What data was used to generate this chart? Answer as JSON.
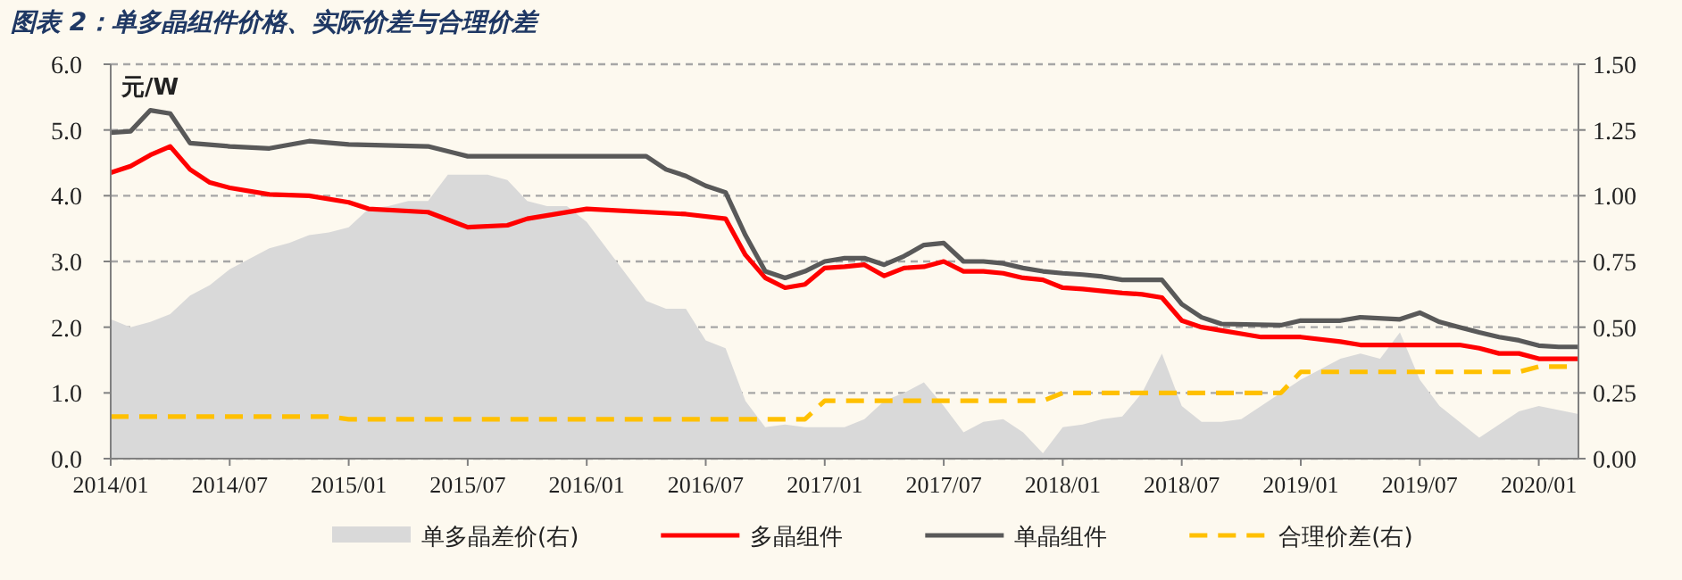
{
  "chart_data": {
    "type": "line",
    "title": "图表 2：单多晶组件价格、实际价差与合理价差",
    "ylabel": "元/W",
    "xlim": [
      "2014-01",
      "2020-03"
    ],
    "xticks": [
      {
        "value": "2014-01",
        "label": "2014/01"
      },
      {
        "value": "2014-07",
        "label": "2014/07"
      },
      {
        "value": "2015-01",
        "label": "2015/01"
      },
      {
        "value": "2015-07",
        "label": "2015/07"
      },
      {
        "value": "2016-01",
        "label": "2016/01"
      },
      {
        "value": "2016-07",
        "label": "2016/07"
      },
      {
        "value": "2017-01",
        "label": "2017/01"
      },
      {
        "value": "2017-07",
        "label": "2017/07"
      },
      {
        "value": "2018-01",
        "label": "2018/01"
      },
      {
        "value": "2018-07",
        "label": "2018/07"
      },
      {
        "value": "2019-01",
        "label": "2019/01"
      },
      {
        "value": "2019-07",
        "label": "2019/07"
      },
      {
        "value": "2020-01",
        "label": "2020/01"
      }
    ],
    "ylim": [
      0,
      6
    ],
    "yticks": [
      {
        "value": 0,
        "label": "0.0"
      },
      {
        "value": 1,
        "label": "1.0"
      },
      {
        "value": 2,
        "label": "2.0"
      },
      {
        "value": 3,
        "label": "3.0"
      },
      {
        "value": 4,
        "label": "4.0"
      },
      {
        "value": 5,
        "label": "5.0"
      },
      {
        "value": 6,
        "label": "6.0"
      }
    ],
    "y2lim": [
      0,
      1.5
    ],
    "y2ticks": [
      {
        "value": 0,
        "label": "0.00"
      },
      {
        "value": 0.25,
        "label": "0.25"
      },
      {
        "value": 0.5,
        "label": "0.50"
      },
      {
        "value": 0.75,
        "label": "0.75"
      },
      {
        "value": 1,
        "label": "1.00"
      },
      {
        "value": 1.25,
        "label": "1.25"
      },
      {
        "value": 1.5,
        "label": "1.50"
      }
    ],
    "grid": "y",
    "legend": "bottom",
    "series": [
      {
        "name": "单多晶差价(右)",
        "type": "area",
        "axis": "y2",
        "color": "#d9d9d9",
        "x": [
          "2014-01",
          "2014-02",
          "2014-03",
          "2014-04",
          "2014-05",
          "2014-06",
          "2014-07",
          "2014-08",
          "2014-09",
          "2014-10",
          "2014-11",
          "2014-12",
          "2015-01",
          "2015-02",
          "2015-03",
          "2015-04",
          "2015-05",
          "2015-06",
          "2015-07",
          "2015-08",
          "2015-09",
          "2015-10",
          "2015-11",
          "2015-12",
          "2016-01",
          "2016-02",
          "2016-03",
          "2016-04",
          "2016-05",
          "2016-06",
          "2016-07",
          "2016-08",
          "2016-09",
          "2016-10",
          "2016-11",
          "2016-12",
          "2017-01",
          "2017-02",
          "2017-03",
          "2017-04",
          "2017-05",
          "2017-06",
          "2017-07",
          "2017-08",
          "2017-09",
          "2017-10",
          "2017-11",
          "2017-12",
          "2018-01",
          "2018-02",
          "2018-03",
          "2018-04",
          "2018-05",
          "2018-06",
          "2018-07",
          "2018-08",
          "2018-09",
          "2018-10",
          "2018-12",
          "2019-01",
          "2019-02",
          "2019-03",
          "2019-04",
          "2019-05",
          "2019-06",
          "2019-07",
          "2019-08",
          "2019-10",
          "2019-12",
          "2020-01",
          "2020-03"
        ],
        "values": [
          0.53,
          0.5,
          0.52,
          0.55,
          0.62,
          0.66,
          0.72,
          0.76,
          0.8,
          0.82,
          0.85,
          0.86,
          0.88,
          0.95,
          0.96,
          0.98,
          0.98,
          1.08,
          1.08,
          1.08,
          1.06,
          0.98,
          0.96,
          0.96,
          0.9,
          0.8,
          0.7,
          0.6,
          0.57,
          0.57,
          0.45,
          0.42,
          0.22,
          0.12,
          0.13,
          0.12,
          0.12,
          0.12,
          0.15,
          0.22,
          0.25,
          0.29,
          0.2,
          0.1,
          0.14,
          0.15,
          0.1,
          0.02,
          0.12,
          0.13,
          0.15,
          0.16,
          0.25,
          0.4,
          0.2,
          0.14,
          0.14,
          0.15,
          0.25,
          0.3,
          0.34,
          0.38,
          0.4,
          0.38,
          0.48,
          0.3,
          0.2,
          0.08,
          0.18,
          0.2,
          0.17
        ]
      },
      {
        "name": "多晶组件",
        "color": "#ff0000",
        "x": [
          "2014-01",
          "2014-02",
          "2014-03",
          "2014-04",
          "2014-05",
          "2014-06",
          "2014-07",
          "2014-09",
          "2014-11",
          "2015-01",
          "2015-02",
          "2015-05",
          "2015-07",
          "2015-09",
          "2015-10",
          "2016-01",
          "2016-06",
          "2016-08",
          "2016-09",
          "2016-10",
          "2016-11",
          "2016-12",
          "2017-01",
          "2017-02",
          "2017-03",
          "2017-04",
          "2017-05",
          "2017-06",
          "2017-07",
          "2017-08",
          "2017-09",
          "2017-10",
          "2017-11",
          "2017-12",
          "2018-01",
          "2018-02",
          "2018-03",
          "2018-04",
          "2018-05",
          "2018-06",
          "2018-07",
          "2018-08",
          "2018-09",
          "2018-10",
          "2018-11",
          "2019-01",
          "2019-03",
          "2019-04",
          "2019-07",
          "2019-09",
          "2019-10",
          "2019-11",
          "2019-12",
          "2020-01",
          "2020-03"
        ],
        "values": [
          4.35,
          4.45,
          4.62,
          4.75,
          4.4,
          4.2,
          4.12,
          4.02,
          4.0,
          3.9,
          3.8,
          3.75,
          3.52,
          3.55,
          3.65,
          3.8,
          3.72,
          3.65,
          3.1,
          2.75,
          2.6,
          2.65,
          2.9,
          2.92,
          2.95,
          2.78,
          2.9,
          2.92,
          3.0,
          2.85,
          2.85,
          2.82,
          2.75,
          2.72,
          2.6,
          2.58,
          2.55,
          2.52,
          2.5,
          2.45,
          2.1,
          2.0,
          1.95,
          1.9,
          1.85,
          1.85,
          1.78,
          1.73,
          1.73,
          1.73,
          1.68,
          1.6,
          1.6,
          1.52,
          1.52
        ]
      },
      {
        "name": "单晶组件",
        "color": "#595959",
        "x": [
          "2014-01",
          "2014-02",
          "2014-03",
          "2014-04",
          "2014-05",
          "2014-07",
          "2014-09",
          "2014-11",
          "2015-01",
          "2015-05",
          "2015-07",
          "2016-04",
          "2016-05",
          "2016-06",
          "2016-07",
          "2016-08",
          "2016-09",
          "2016-10",
          "2016-11",
          "2016-12",
          "2017-01",
          "2017-02",
          "2017-03",
          "2017-04",
          "2017-05",
          "2017-06",
          "2017-07",
          "2017-08",
          "2017-09",
          "2017-10",
          "2017-11",
          "2017-12",
          "2018-01",
          "2018-02",
          "2018-03",
          "2018-04",
          "2018-05",
          "2018-06",
          "2018-07",
          "2018-08",
          "2018-09",
          "2018-12",
          "2019-01",
          "2019-03",
          "2019-04",
          "2019-06",
          "2019-07",
          "2019-08",
          "2019-09",
          "2019-10",
          "2019-11",
          "2019-12",
          "2020-01",
          "2020-02",
          "2020-03"
        ],
        "values": [
          4.96,
          4.98,
          5.3,
          5.25,
          4.8,
          4.75,
          4.72,
          4.83,
          4.78,
          4.75,
          4.6,
          4.6,
          4.4,
          4.3,
          4.15,
          4.05,
          3.4,
          2.85,
          2.75,
          2.85,
          3.0,
          3.05,
          3.05,
          2.95,
          3.08,
          3.25,
          3.28,
          3.0,
          3.0,
          2.97,
          2.9,
          2.85,
          2.82,
          2.8,
          2.77,
          2.72,
          2.72,
          2.72,
          2.35,
          2.15,
          2.05,
          2.03,
          2.1,
          2.1,
          2.15,
          2.12,
          2.22,
          2.08,
          2.0,
          1.92,
          1.85,
          1.8,
          1.72,
          1.7,
          1.7
        ]
      },
      {
        "name": "合理价差(右)",
        "axis": "y2",
        "color": "#ffc000",
        "line_style": "dashed",
        "x": [
          "2014-01",
          "2014-12",
          "2015-01",
          "2016-12",
          "2017-01",
          "2017-12",
          "2018-01",
          "2018-12",
          "2019-01",
          "2019-12",
          "2020-01",
          "2020-03"
        ],
        "values": [
          0.16,
          0.16,
          0.15,
          0.15,
          0.22,
          0.22,
          0.25,
          0.25,
          0.33,
          0.33,
          0.35,
          0.35
        ]
      }
    ]
  }
}
